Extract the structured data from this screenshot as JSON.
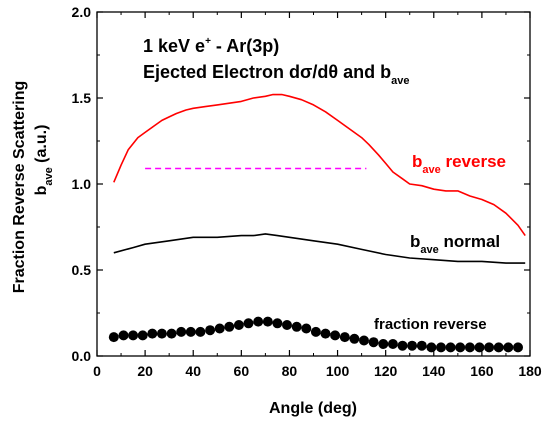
{
  "chart_data": {
    "type": "line",
    "title_lines": [
      "1 keV e",
      "+",
      " - Ar(3p)",
      "Ejected Electron dσ/dθ and b",
      "ave"
    ],
    "xlabel": "Angle (deg)",
    "ylabel_line1": "Fraction Reverse Scattering",
    "ylabel_line2_main": "b",
    "ylabel_line2_sub": "ave",
    "ylabel_line2_rest": " (a.u.)",
    "xlim": [
      0,
      180
    ],
    "ylim": [
      0.0,
      2.0
    ],
    "xticks": [
      0,
      20,
      40,
      60,
      80,
      100,
      120,
      140,
      160,
      180
    ],
    "yticks": [
      0.0,
      0.5,
      1.0,
      1.5,
      2.0
    ],
    "ytick_labels": [
      "0.0",
      "0.5",
      "1.0",
      "1.5",
      "2.0"
    ],
    "grid": false,
    "series": [
      {
        "name": "b_ave reverse",
        "label_main": "b",
        "label_sub": "ave",
        "label_rest": " reverse",
        "color": "#ff0000",
        "style": "line",
        "x": [
          7,
          10,
          13,
          17,
          20,
          24,
          27,
          30,
          33,
          37,
          40,
          45,
          50,
          55,
          60,
          65,
          70,
          73,
          77,
          80,
          85,
          90,
          95,
          100,
          105,
          110,
          113,
          117,
          120,
          123,
          127,
          130,
          135,
          140,
          145,
          150,
          155,
          160,
          165,
          170,
          175,
          178
        ],
        "y": [
          1.01,
          1.11,
          1.2,
          1.27,
          1.3,
          1.34,
          1.37,
          1.39,
          1.41,
          1.43,
          1.44,
          1.45,
          1.46,
          1.47,
          1.48,
          1.5,
          1.51,
          1.52,
          1.52,
          1.51,
          1.49,
          1.46,
          1.42,
          1.37,
          1.32,
          1.27,
          1.23,
          1.17,
          1.12,
          1.07,
          1.03,
          1.0,
          0.99,
          0.97,
          0.96,
          0.96,
          0.93,
          0.91,
          0.88,
          0.83,
          0.76,
          0.7
        ]
      },
      {
        "name": "b_ave normal",
        "label_main": "b",
        "label_sub": "ave",
        "label_rest": " normal",
        "color": "#000000",
        "style": "line",
        "x": [
          7,
          15,
          20,
          30,
          40,
          50,
          60,
          65,
          70,
          75,
          80,
          90,
          100,
          110,
          120,
          130,
          140,
          150,
          160,
          170,
          178
        ],
        "y": [
          0.6,
          0.63,
          0.65,
          0.67,
          0.69,
          0.69,
          0.7,
          0.7,
          0.71,
          0.7,
          0.69,
          0.67,
          0.65,
          0.62,
          0.59,
          0.57,
          0.56,
          0.55,
          0.55,
          0.54,
          0.54
        ]
      },
      {
        "name": "fraction reverse",
        "label_main": "fraction reverse",
        "label_sub": "",
        "label_rest": "",
        "color": "#000000",
        "style": "markers",
        "x": [
          7,
          11,
          15,
          19,
          23,
          27,
          31,
          35,
          39,
          43,
          47,
          51,
          55,
          59,
          63,
          67,
          71,
          75,
          79,
          83,
          87,
          91,
          95,
          99,
          103,
          107,
          111,
          115,
          119,
          123,
          127,
          131,
          135,
          139,
          143,
          147,
          151,
          155,
          159,
          163,
          167,
          171,
          175
        ],
        "y": [
          0.11,
          0.12,
          0.12,
          0.12,
          0.13,
          0.13,
          0.13,
          0.14,
          0.14,
          0.14,
          0.15,
          0.16,
          0.17,
          0.18,
          0.19,
          0.2,
          0.2,
          0.19,
          0.18,
          0.17,
          0.16,
          0.14,
          0.13,
          0.12,
          0.11,
          0.1,
          0.09,
          0.08,
          0.07,
          0.07,
          0.06,
          0.06,
          0.06,
          0.05,
          0.05,
          0.05,
          0.05,
          0.05,
          0.05,
          0.05,
          0.05,
          0.05,
          0.05
        ]
      },
      {
        "name": "dashed reference",
        "color": "#ff00ff",
        "style": "dashed",
        "x": [
          20,
          112
        ],
        "y": [
          1.09,
          1.09
        ]
      }
    ]
  }
}
